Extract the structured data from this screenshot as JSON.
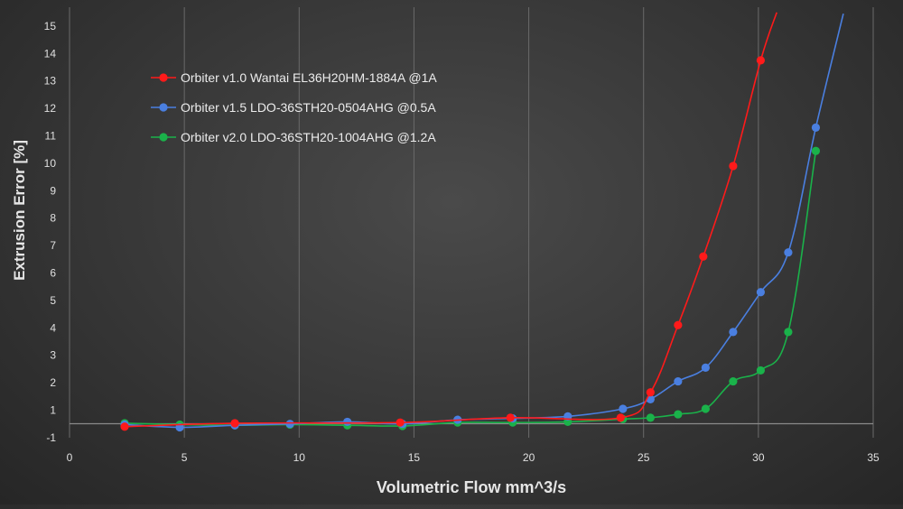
{
  "chart_data": {
    "type": "line",
    "title": "",
    "xlabel": "Volumetric Flow mm^3/s",
    "ylabel": "Extrusion Error [%]",
    "xlim": [
      0,
      35
    ],
    "ylim": [
      -1,
      15.5
    ],
    "x_ticks": [
      0,
      5,
      10,
      15,
      20,
      25,
      30,
      35
    ],
    "y_ticks": [
      -1,
      1,
      2,
      3,
      4,
      5,
      6,
      7,
      8,
      9,
      10,
      11,
      12,
      13,
      14,
      15
    ],
    "grid": "vertical",
    "legend_position": "top-left",
    "series": [
      {
        "name": "Orbiter v1.0 Wantai EL36H20HM-1884A @1A",
        "color": "#ff1a1a",
        "points": [
          [
            2.4,
            -0.2
          ],
          [
            7.2,
            0.05
          ],
          [
            14.4,
            0.1
          ],
          [
            19.2,
            0.45
          ],
          [
            24.0,
            0.45
          ],
          [
            25.3,
            1.65
          ],
          [
            26.5,
            4.1
          ],
          [
            27.6,
            6.6
          ],
          [
            28.9,
            9.9
          ],
          [
            30.1,
            13.75
          ],
          [
            30.8,
            15.5
          ]
        ]
      },
      {
        "name": "Orbiter v1.5 LDO-36STH20-0504AHG @0.5A",
        "color": "#4a7fe0",
        "points": [
          [
            2.4,
            -0.05
          ],
          [
            4.8,
            -0.25
          ],
          [
            7.2,
            -0.1
          ],
          [
            9.6,
            0.0
          ],
          [
            12.1,
            0.15
          ],
          [
            14.5,
            0.0
          ],
          [
            16.9,
            0.3
          ],
          [
            19.3,
            0.4
          ],
          [
            21.7,
            0.55
          ],
          [
            24.1,
            1.05
          ],
          [
            25.3,
            1.4
          ],
          [
            26.5,
            2.05
          ],
          [
            27.7,
            2.55
          ],
          [
            28.9,
            3.85
          ],
          [
            30.1,
            5.3
          ],
          [
            31.3,
            6.75
          ],
          [
            32.5,
            11.3
          ],
          [
            33.7,
            15.45
          ]
        ]
      },
      {
        "name": "Orbiter v2.0 LDO-36STH20-1004AHG @1.2A",
        "color": "#1ab24a",
        "points": [
          [
            2.4,
            0.05
          ],
          [
            4.8,
            -0.05
          ],
          [
            7.2,
            -0.1
          ],
          [
            9.6,
            -0.05
          ],
          [
            12.1,
            -0.1
          ],
          [
            14.5,
            -0.15
          ],
          [
            16.9,
            0.1
          ],
          [
            19.3,
            0.1
          ],
          [
            21.7,
            0.15
          ],
          [
            24.1,
            0.35
          ],
          [
            25.3,
            0.45
          ],
          [
            26.5,
            0.7
          ],
          [
            27.7,
            1.05
          ],
          [
            28.9,
            2.05
          ],
          [
            30.1,
            2.45
          ],
          [
            31.3,
            3.85
          ],
          [
            32.5,
            10.45
          ]
        ]
      }
    ]
  }
}
